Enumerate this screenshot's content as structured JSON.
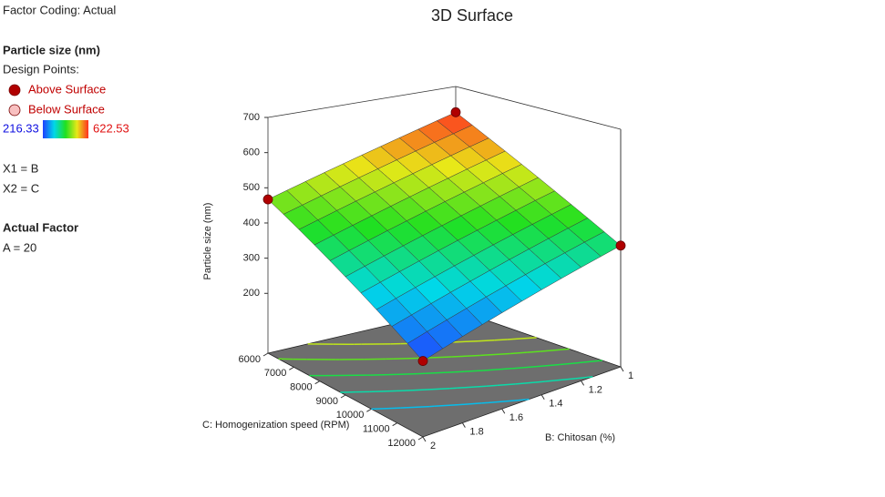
{
  "sidebar": {
    "factor_coding": "Factor Coding: Actual",
    "response": "Particle size (nm)",
    "design_points_label": "Design Points:",
    "x1": "X1 = B",
    "x2": "X2 = C",
    "actual_factor_title": "Actual Factor",
    "actual_factor": "A = 20"
  },
  "chart_data": {
    "type": "surface",
    "title": "3D Surface",
    "xlabel": "B: Chitosan (%)",
    "ylabel": "C: Homogenization speed (RPM)",
    "zlabel": "Particle size (nm)",
    "x": [
      1,
      1.1,
      1.2,
      1.3,
      1.4,
      1.5,
      1.6,
      1.7,
      1.8,
      1.9,
      2
    ],
    "y": [
      6000,
      6600,
      7200,
      7800,
      8400,
      9000,
      9600,
      10200,
      10800,
      11400,
      12000
    ],
    "z": [
      [
        622.5,
        607.0,
        591.4,
        575.9,
        560.3,
        544.8,
        529.2,
        513.7,
        498.1,
        482.6,
        467.0
      ],
      [
        597.5,
        581.9,
        566.4,
        550.8,
        535.3,
        519.7,
        504.2,
        488.6,
        473.1,
        457.5,
        442.0
      ],
      [
        572.4,
        556.9,
        541.3,
        525.8,
        510.2,
        494.7,
        479.1,
        463.6,
        448.0,
        432.4,
        416.9
      ],
      [
        547.4,
        531.8,
        516.3,
        500.7,
        485.2,
        469.6,
        454.1,
        438.5,
        423.0,
        407.4,
        391.8
      ],
      [
        522.3,
        506.8,
        491.2,
        475.7,
        460.1,
        444.6,
        429.0,
        413.5,
        397.9,
        382.3,
        366.8
      ],
      [
        497.3,
        481.7,
        466.2,
        450.6,
        435.1,
        419.5,
        404.0,
        388.4,
        372.9,
        357.3,
        341.7
      ],
      [
        472.2,
        456.7,
        441.1,
        425.6,
        410.0,
        394.4,
        378.9,
        363.3,
        347.8,
        332.2,
        316.7
      ],
      [
        447.2,
        431.6,
        416.1,
        400.5,
        385.0,
        369.4,
        353.8,
        338.3,
        322.7,
        307.2,
        291.6
      ],
      [
        422.1,
        406.6,
        391.0,
        375.5,
        359.9,
        344.3,
        328.8,
        313.2,
        297.7,
        282.1,
        266.6
      ],
      [
        397.1,
        381.5,
        365.9,
        350.4,
        334.8,
        319.3,
        303.7,
        288.2,
        272.6,
        257.1,
        241.5
      ],
      [
        372.0,
        356.4,
        340.9,
        325.3,
        309.8,
        294.2,
        278.7,
        263.1,
        247.6,
        232.0,
        216.5
      ]
    ],
    "xlim": [
      1,
      2
    ],
    "xticks": [
      1,
      1.2,
      1.4,
      1.6,
      1.8,
      2
    ],
    "ylim": [
      6000,
      12000
    ],
    "yticks": [
      6000,
      7000,
      8000,
      9000,
      10000,
      11000,
      12000
    ],
    "zlim": [
      30,
      700
    ],
    "zticks": [
      200,
      300,
      400,
      500,
      600,
      700
    ],
    "color_range": [
      216.33,
      622.53
    ],
    "colorscale": [
      "#2040ff",
      "#00d8e8",
      "#20e020",
      "#e8e818",
      "#ff3020"
    ],
    "contour_levels": [
      300,
      350,
      400,
      450,
      500
    ],
    "legend": [
      {
        "name": "Above Surface",
        "color": "#b00000"
      },
      {
        "name": "Below Surface",
        "color": "#f8c0c0"
      }
    ],
    "points": {
      "x": [
        1,
        2,
        1,
        2
      ],
      "y": [
        6000,
        6000,
        12000,
        12000
      ],
      "z": [
        622.53,
        467,
        372,
        216.33
      ]
    }
  }
}
